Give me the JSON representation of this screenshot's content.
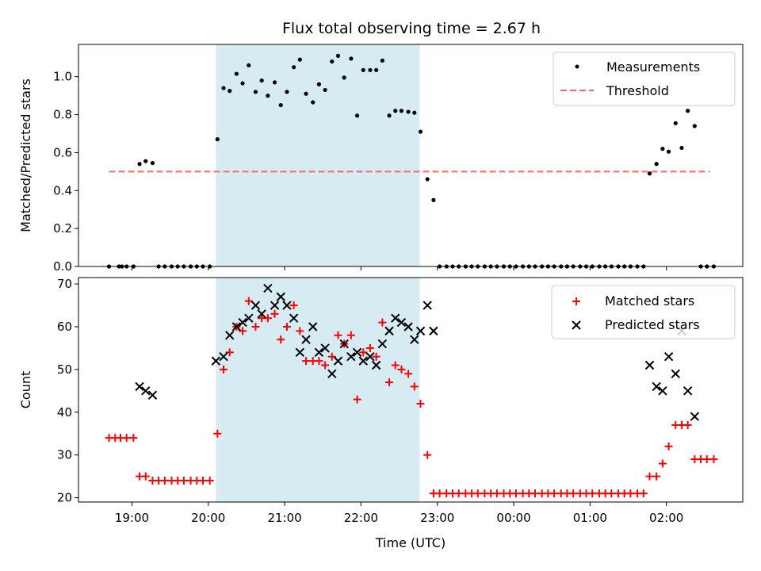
{
  "chart_data": {
    "title": "Flux total observing time = 2.67 h",
    "type": "scatter",
    "xlabel": "Time (UTC)",
    "x_tick_labels": [
      "19:00",
      "20:00",
      "21:00",
      "22:00",
      "23:00",
      "00:00",
      "01:00",
      "02:00"
    ],
    "x_ticks_hours": [
      19,
      20,
      21,
      22,
      23,
      24,
      25,
      26
    ],
    "xlim_hours": [
      18.3,
      27.0
    ],
    "highlight_span_hours": [
      20.1,
      22.77
    ],
    "colors": {
      "highlight": "#add8e6",
      "threshold": "#ff6666",
      "matched": "#ff0000",
      "predicted": "#000000",
      "measurement": "#000000"
    },
    "panels": [
      {
        "ylabel": "Matched/Predicted stars",
        "ylim": [
          0,
          1.17
        ],
        "yticks": [
          0.0,
          0.2,
          0.4,
          0.6,
          0.8,
          1.0
        ],
        "ytick_labels": [
          "0.0",
          "0.2",
          "0.4",
          "0.6",
          "0.8",
          "1.0"
        ],
        "legend": [
          "Measurements",
          "Threshold"
        ],
        "threshold": {
          "y": 0.5,
          "x_range_hours": [
            18.7,
            26.57
          ]
        },
        "measurements": {
          "x": [
            18.7,
            18.83,
            18.87,
            18.93,
            19.02,
            19.1,
            19.18,
            19.27,
            19.35,
            19.43,
            19.52,
            19.6,
            19.68,
            19.77,
            19.85,
            19.93,
            20.02,
            20.12,
            20.2,
            20.28,
            20.37,
            20.45,
            20.53,
            20.62,
            20.7,
            20.78,
            20.87,
            20.95,
            21.03,
            21.12,
            21.2,
            21.28,
            21.37,
            21.45,
            21.53,
            21.62,
            21.7,
            21.78,
            21.87,
            21.95,
            22.03,
            22.12,
            22.2,
            22.28,
            22.37,
            22.45,
            22.53,
            22.62,
            22.7,
            22.78,
            22.87,
            22.95,
            23.03,
            23.12,
            23.2,
            23.28,
            23.37,
            23.45,
            23.53,
            23.62,
            23.7,
            23.78,
            23.87,
            23.95,
            24.03,
            24.12,
            24.2,
            24.28,
            24.37,
            24.45,
            24.53,
            24.62,
            24.7,
            24.78,
            24.87,
            24.95,
            25.03,
            25.12,
            25.2,
            25.28,
            25.37,
            25.45,
            25.53,
            25.62,
            25.7,
            25.78,
            25.87,
            25.95,
            26.03,
            26.12,
            26.2,
            26.28,
            26.37,
            26.45,
            26.53,
            26.62
          ],
          "y": [
            0.0,
            0.0,
            0.0,
            0.0,
            0.0,
            0.54,
            0.555,
            0.545,
            0.0,
            0.0,
            0.0,
            0.0,
            0.0,
            0.0,
            0.0,
            0.0,
            0.0,
            0.67,
            0.94,
            0.925,
            1.015,
            0.965,
            1.06,
            0.92,
            0.98,
            0.9,
            0.97,
            0.85,
            0.92,
            1.05,
            1.09,
            0.91,
            0.865,
            0.96,
            0.93,
            1.08,
            1.11,
            0.995,
            1.095,
            0.795,
            1.035,
            1.035,
            1.035,
            1.085,
            0.795,
            0.82,
            0.82,
            0.815,
            0.81,
            0.71,
            0.46,
            0.35,
            0.0,
            0.0,
            0.0,
            0.0,
            0.0,
            0.0,
            0.0,
            0.0,
            0.0,
            0.0,
            0.0,
            0.0,
            0.0,
            0.0,
            0.0,
            0.0,
            0.0,
            0.0,
            0.0,
            0.0,
            0.0,
            0.0,
            0.0,
            0.0,
            0.0,
            0.0,
            0.0,
            0.0,
            0.0,
            0.0,
            0.0,
            0.0,
            0.0,
            0.49,
            0.54,
            0.62,
            0.605,
            0.755,
            0.625,
            0.82,
            0.74,
            0.0,
            0.0,
            0.0
          ]
        }
      },
      {
        "ylabel": "Count",
        "ylim": [
          19,
          71.5
        ],
        "yticks": [
          20,
          30,
          40,
          50,
          60,
          70
        ],
        "ytick_labels": [
          "20",
          "30",
          "40",
          "50",
          "60",
          "70"
        ],
        "legend": [
          "Matched stars",
          "Predicted stars"
        ],
        "series": [
          {
            "name": "Matched stars",
            "marker": "+",
            "x": [
              18.7,
              18.78,
              18.85,
              18.93,
              19.02,
              19.1,
              19.18,
              19.27,
              19.35,
              19.43,
              19.52,
              19.6,
              19.68,
              19.77,
              19.85,
              19.93,
              20.02,
              20.12,
              20.2,
              20.28,
              20.37,
              20.45,
              20.53,
              20.62,
              20.7,
              20.78,
              20.87,
              20.95,
              21.03,
              21.12,
              21.2,
              21.28,
              21.37,
              21.45,
              21.53,
              21.62,
              21.7,
              21.78,
              21.87,
              21.95,
              22.03,
              22.12,
              22.2,
              22.28,
              22.37,
              22.45,
              22.53,
              22.62,
              22.7,
              22.78,
              22.87,
              22.95,
              23.03,
              23.12,
              23.2,
              23.28,
              23.37,
              23.45,
              23.53,
              23.62,
              23.7,
              23.78,
              23.87,
              23.95,
              24.03,
              24.12,
              24.2,
              24.28,
              24.37,
              24.45,
              24.53,
              24.62,
              24.7,
              24.78,
              24.87,
              24.95,
              25.03,
              25.12,
              25.2,
              25.28,
              25.37,
              25.45,
              25.53,
              25.62,
              25.7,
              25.78,
              25.87,
              25.95,
              26.03,
              26.12,
              26.2,
              26.28,
              26.37,
              26.45,
              26.53,
              26.62
            ],
            "y": [
              34,
              34,
              34,
              34,
              34,
              25,
              25,
              24,
              24,
              24,
              24,
              24,
              24,
              24,
              24,
              24,
              24,
              35,
              50,
              54,
              60,
              59,
              66,
              60,
              62,
              62,
              63,
              57,
              60,
              65,
              59,
              52,
              52,
              52,
              51,
              53,
              58,
              56,
              58,
              43,
              54,
              55,
              53,
              61,
              47,
              51,
              50,
              49,
              46,
              42,
              30,
              21,
              21,
              21,
              21,
              21,
              21,
              21,
              21,
              21,
              21,
              21,
              21,
              21,
              21,
              21,
              21,
              21,
              21,
              21,
              21,
              21,
              21,
              21,
              21,
              21,
              21,
              21,
              21,
              21,
              21,
              21,
              21,
              21,
              21,
              25,
              25,
              28,
              32,
              37,
              37,
              37,
              29,
              29,
              29,
              29
            ]
          },
          {
            "name": "Predicted stars",
            "marker": "x",
            "x": [
              20.1,
              20.2,
              20.28,
              20.37,
              20.45,
              20.53,
              20.62,
              20.7,
              20.78,
              20.87,
              20.95,
              21.03,
              21.12,
              21.2,
              21.28,
              21.37,
              21.45,
              21.53,
              21.62,
              21.7,
              21.78,
              21.87,
              21.95,
              22.03,
              22.12,
              22.2,
              22.28,
              22.37,
              22.45,
              22.53,
              22.62,
              22.7,
              22.78,
              22.87,
              22.95,
              19.1,
              19.18,
              19.27,
              25.78,
              25.87,
              25.95,
              26.03,
              26.12,
              26.2,
              26.28,
              26.37
            ],
            "y": [
              52,
              53,
              58,
              60,
              61,
              62,
              65,
              63,
              69,
              65,
              67,
              65,
              62,
              54,
              57,
              60,
              54,
              55,
              49,
              52,
              56,
              53,
              54,
              52,
              53,
              51,
              56,
              59,
              62,
              61,
              60,
              57,
              59,
              65,
              59,
              46,
              45,
              44,
              51,
              46,
              45,
              53,
              49,
              59,
              45,
              39
            ]
          }
        ]
      }
    ]
  }
}
